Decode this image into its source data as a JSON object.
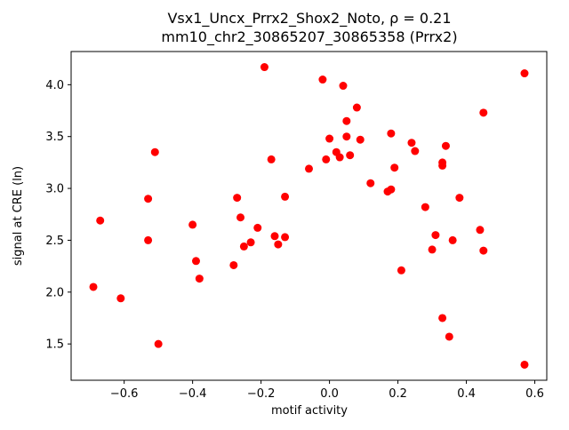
{
  "figure": {
    "background": "#ffffff",
    "axes_edge_color": "#000000"
  },
  "chart_data": {
    "type": "scatter",
    "title_line1": "Vsx1_Uncx_Prrx2_Shox2_Noto, ρ = 0.21",
    "title_line2": "mm10_chr2_30865207_30865358 (Prrx2)",
    "xlabel": "motif activity",
    "ylabel": "signal at CRE (ln)",
    "xlim": [
      -0.755,
      0.635
    ],
    "ylim": [
      1.15,
      4.32
    ],
    "xticks": [
      -0.6,
      -0.4,
      -0.2,
      0.0,
      0.2,
      0.4,
      0.6
    ],
    "yticks": [
      1.5,
      2.0,
      2.5,
      3.0,
      3.5,
      4.0
    ],
    "grid": false,
    "legend": "none",
    "marker_color": "#ff0000",
    "marker_radius": 4.5,
    "points": [
      [
        -0.69,
        2.05
      ],
      [
        -0.67,
        2.69
      ],
      [
        -0.61,
        1.94
      ],
      [
        -0.53,
        2.9
      ],
      [
        -0.53,
        2.5
      ],
      [
        -0.51,
        3.35
      ],
      [
        -0.5,
        1.5
      ],
      [
        -0.4,
        2.65
      ],
      [
        -0.39,
        2.3
      ],
      [
        -0.38,
        2.13
      ],
      [
        -0.28,
        2.26
      ],
      [
        -0.27,
        2.91
      ],
      [
        -0.26,
        2.72
      ],
      [
        -0.25,
        2.44
      ],
      [
        -0.23,
        2.48
      ],
      [
        -0.21,
        2.62
      ],
      [
        -0.19,
        4.17
      ],
      [
        -0.17,
        3.28
      ],
      [
        -0.16,
        2.54
      ],
      [
        -0.15,
        2.46
      ],
      [
        -0.13,
        2.53
      ],
      [
        -0.13,
        2.92
      ],
      [
        -0.06,
        3.19
      ],
      [
        -0.02,
        4.05
      ],
      [
        -0.01,
        3.28
      ],
      [
        0.0,
        3.48
      ],
      [
        0.02,
        3.35
      ],
      [
        0.03,
        3.3
      ],
      [
        0.04,
        3.99
      ],
      [
        0.05,
        3.5
      ],
      [
        0.05,
        3.65
      ],
      [
        0.06,
        3.32
      ],
      [
        0.08,
        3.78
      ],
      [
        0.09,
        3.47
      ],
      [
        0.12,
        3.05
      ],
      [
        0.17,
        2.97
      ],
      [
        0.18,
        2.99
      ],
      [
        0.18,
        3.53
      ],
      [
        0.19,
        3.2
      ],
      [
        0.21,
        2.21
      ],
      [
        0.24,
        3.44
      ],
      [
        0.25,
        3.36
      ],
      [
        0.28,
        2.82
      ],
      [
        0.3,
        2.41
      ],
      [
        0.31,
        2.55
      ],
      [
        0.33,
        3.25
      ],
      [
        0.33,
        3.22
      ],
      [
        0.34,
        3.41
      ],
      [
        0.33,
        1.75
      ],
      [
        0.35,
        1.57
      ],
      [
        0.36,
        2.5
      ],
      [
        0.38,
        2.91
      ],
      [
        0.44,
        2.6
      ],
      [
        0.45,
        2.4
      ],
      [
        0.45,
        3.73
      ],
      [
        0.57,
        4.11
      ],
      [
        0.57,
        1.3
      ]
    ]
  }
}
